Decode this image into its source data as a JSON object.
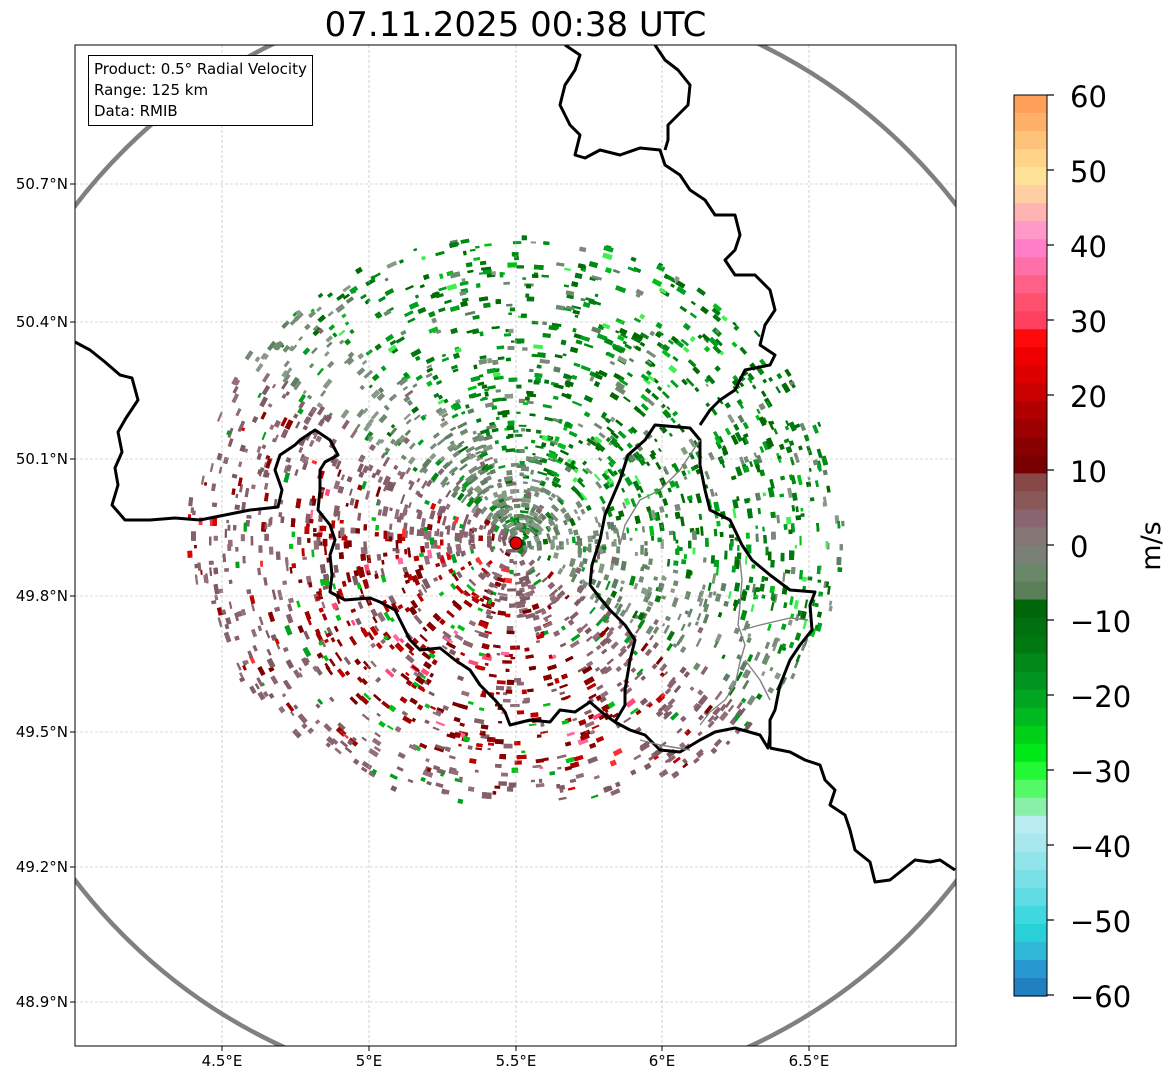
{
  "title": "07.11.2025 00:38 UTC",
  "legend": {
    "product": "Product: 0.5° Radial Velocity",
    "range": "Range: 125 km",
    "source": "Data: RMIB"
  },
  "axes": {
    "lat_labels": [
      "50.7°N",
      "50.4°N",
      "50.1°N",
      "49.8°N",
      "49.5°N",
      "49.2°N",
      "48.9°N"
    ],
    "lon_labels": [
      "4.5°E",
      "5°E",
      "5.5°E",
      "6°E",
      "6.5°E"
    ]
  },
  "colorbar": {
    "label": "m/s",
    "ticks": [
      "60",
      "50",
      "40",
      "30",
      "20",
      "10",
      "0",
      "−10",
      "−20",
      "−30",
      "−40",
      "−50",
      "−60"
    ],
    "min": -60,
    "max": 60,
    "colors_top_to_bottom": [
      "#ff9f5a",
      "#ffb068",
      "#ffc27a",
      "#ffd488",
      "#ffe29a",
      "#ffcfa4",
      "#ffb3b3",
      "#ff99c8",
      "#ff80c8",
      "#ff70a8",
      "#ff6088",
      "#ff5070",
      "#ff4060",
      "#ff0a0a",
      "#ee0000",
      "#dd0000",
      "#c80000",
      "#b00000",
      "#9c0000",
      "#880000",
      "#780000",
      "#884848",
      "#8a5858",
      "#886570",
      "#857575",
      "#7a8075",
      "#6a8868",
      "#5a7e58",
      "#00660a",
      "#007010",
      "#007a10",
      "#008818",
      "#009520",
      "#00a520",
      "#00b820",
      "#00d018",
      "#00e818",
      "#22f833",
      "#55f866",
      "#88f0a8",
      "#b8ecf0",
      "#a8e8ec",
      "#90e4ea",
      "#7ae0e8",
      "#60dce4",
      "#40d8e0",
      "#28d0d8",
      "#30b8d8",
      "#2898d0",
      "#2080c0"
    ]
  },
  "radar": {
    "site_lat": 49.91,
    "site_lon": 5.5
  },
  "colors": {
    "grid": "#b4b4b4",
    "borders": "#000000",
    "range_ring": "#808080",
    "site": "#e00000"
  }
}
